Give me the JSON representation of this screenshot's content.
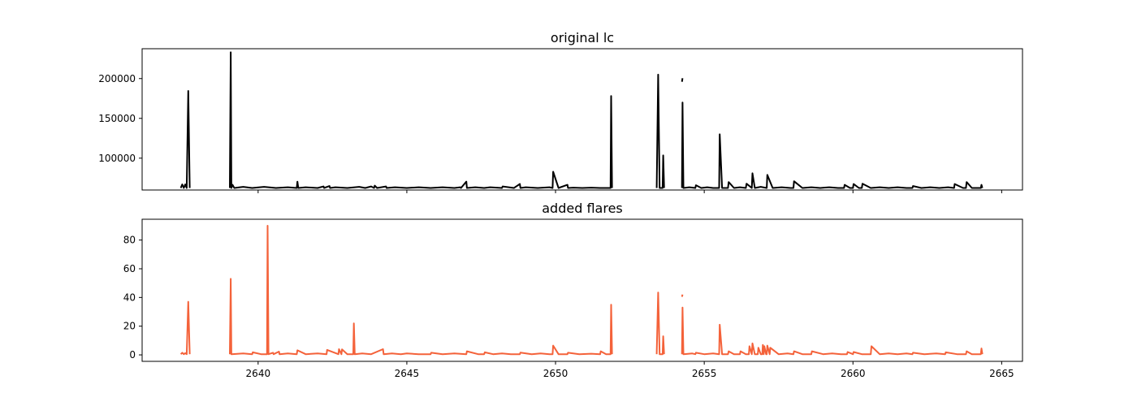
{
  "chart_data": [
    {
      "type": "line",
      "title": "original lc",
      "xlabel": "",
      "ylabel": "",
      "xlim": [
        2636.1,
        2665.7
      ],
      "ylim": [
        60000,
        237500
      ],
      "yticks": [
        100000,
        150000,
        200000
      ],
      "ytick_labels": [
        "100000",
        "150000",
        "200000"
      ],
      "xticks": [
        2640,
        2645,
        2650,
        2655,
        2660,
        2665
      ],
      "xtick_labels": [],
      "grid": false,
      "series": [
        {
          "color": "#000000",
          "segments": [
            {
              "x": [
                2637.4,
                2637.45,
                2637.5,
                2637.55,
                2637.6,
                2637.65,
                2637.7
              ],
              "y": [
                62500,
                67000,
                62500,
                67000,
                62500,
                184500,
                62500
              ]
            },
            {
              "x": [
                2639.05,
                2639.08,
                2639.1,
                2639.14,
                2639.2,
                2639.5,
                2639.8,
                2640.2,
                2640.6,
                2641.0,
                2641.3,
                2641.32,
                2641.35,
                2641.6,
                2642.0,
                2642.2,
                2642.22,
                2642.4,
                2642.42,
                2642.6,
                2643.0,
                2643.4,
                2643.6,
                2643.8,
                2643.9,
                2643.92,
                2644.0,
                2644.3,
                2644.32,
                2644.6,
                2645.0,
                2645.4,
                2645.8,
                2646.2,
                2646.6,
                2646.8,
                2646.82,
                2647.0,
                2647.02,
                2647.3,
                2647.6,
                2647.8,
                2648.2,
                2648.22,
                2648.6,
                2648.8,
                2648.82,
                2649.0,
                2649.4,
                2649.8,
                2649.9,
                2649.92,
                2650.1,
                2650.4,
                2650.42,
                2650.6,
                2650.9,
                2651.2,
                2651.5,
                2651.7,
                2651.85,
                2651.87,
                2651.9
              ],
              "y": [
                62500,
                233000,
                62500,
                66500,
                62500,
                64000,
                62500,
                64000,
                62500,
                63500,
                62500,
                70500,
                62500,
                63500,
                62500,
                64500,
                62500,
                65000,
                62500,
                63500,
                62500,
                64000,
                62500,
                64500,
                62500,
                65500,
                62500,
                64500,
                62500,
                63500,
                62500,
                63500,
                62500,
                63500,
                62500,
                63500,
                62500,
                70500,
                62500,
                63500,
                62500,
                63500,
                62500,
                64500,
                62500,
                67500,
                62500,
                63500,
                62500,
                63500,
                62500,
                83000,
                62500,
                66500,
                62500,
                63000,
                62500,
                63000,
                62500,
                62500,
                62500,
                178000,
                62500
              ]
            },
            {
              "x": [
                2653.4,
                2653.45,
                2653.5,
                2653.55,
                2653.6,
                2653.62,
                2653.65
              ],
              "y": [
                62500,
                205000,
                62500,
                62500,
                62500,
                103500,
                62500
              ]
            },
            {
              "x": [
                2654.25,
                2654.27
              ],
              "y": [
                196000,
                200500
              ]
            },
            {
              "x": [
                2654.25,
                2654.27,
                2654.3,
                2654.5,
                2654.7,
                2654.72,
                2654.9,
                2655.1,
                2655.3,
                2655.5,
                2655.52,
                2655.6,
                2655.8,
                2655.82,
                2656.0,
                2656.2,
                2656.4,
                2656.42,
                2656.6,
                2656.62,
                2656.7,
                2656.9,
                2657.1,
                2657.12,
                2657.3,
                2657.6,
                2657.9,
                2658.0,
                2658.02,
                2658.3,
                2658.6,
                2658.9,
                2659.2,
                2659.5,
                2659.7,
                2659.72,
                2659.9,
                2660.0,
                2660.02,
                2660.2,
                2660.3,
                2660.32,
                2660.6,
                2660.9,
                2661.2,
                2661.5,
                2661.8,
                2662.0,
                2662.02,
                2662.3,
                2662.6,
                2662.9,
                2663.2,
                2663.4,
                2663.42,
                2663.7,
                2663.8,
                2663.82,
                2664.0,
                2664.3,
                2664.32,
                2664.35
              ],
              "y": [
                62500,
                170000,
                62500,
                63500,
                62500,
                66000,
                62500,
                63500,
                62500,
                62500,
                130000,
                62500,
                62500,
                70000,
                62500,
                63500,
                62500,
                68000,
                62500,
                81000,
                62500,
                64000,
                62500,
                79000,
                62500,
                63500,
                62500,
                62500,
                71000,
                62500,
                63500,
                62500,
                63500,
                62500,
                62500,
                66500,
                62500,
                62500,
                67500,
                62500,
                62500,
                68000,
                62500,
                63500,
                62500,
                63500,
                62500,
                62500,
                65000,
                62500,
                63500,
                62500,
                63500,
                62500,
                67500,
                62500,
                62500,
                70000,
                62500,
                62500,
                66500,
                62500
              ]
            }
          ]
        }
      ]
    },
    {
      "type": "line",
      "title": "added flares",
      "xlabel": "",
      "ylabel": "",
      "xlim": [
        2636.1,
        2665.7
      ],
      "ylim": [
        -4.5,
        94.5
      ],
      "yticks": [
        0,
        20,
        40,
        60,
        80
      ],
      "ytick_labels": [
        "0",
        "20",
        "40",
        "60",
        "80"
      ],
      "xticks": [
        2640,
        2645,
        2650,
        2655,
        2660,
        2665
      ],
      "xtick_labels": [
        "2640",
        "2645",
        "2650",
        "2655",
        "2660",
        "2665"
      ],
      "grid": false,
      "series": [
        {
          "color": "#f4623a",
          "segments": [
            {
              "x": [
                2637.4,
                2637.45,
                2637.5,
                2637.55,
                2637.6,
                2637.65,
                2637.7
              ],
              "y": [
                0.5,
                1.5,
                0.5,
                1.2,
                0.5,
                37,
                0.5
              ]
            },
            {
              "x": [
                2639.05,
                2639.08,
                2639.1,
                2639.5,
                2639.8,
                2639.82,
                2640.1,
                2640.3,
                2640.32,
                2640.35,
                2640.5,
                2640.52,
                2640.7,
                2640.72,
                2641.0,
                2641.3,
                2641.32,
                2641.6,
                2642.0,
                2642.3,
                2642.32,
                2642.7,
                2642.72,
                2642.8,
                2642.82,
                2643.0,
                2643.2,
                2643.22,
                2643.25,
                2643.5,
                2643.8,
                2644.2,
                2644.22,
                2644.5,
                2644.8,
                2645.0,
                2645.4,
                2645.8,
                2645.82,
                2646.2,
                2646.6,
                2647.0,
                2647.02,
                2647.4,
                2647.6,
                2647.62,
                2647.9,
                2648.2,
                2648.5,
                2648.8,
                2648.82,
                2649.2,
                2649.5,
                2649.8,
                2649.9,
                2649.92,
                2650.1,
                2650.4,
                2650.42,
                2650.8,
                2651.2,
                2651.5,
                2651.52,
                2651.7,
                2651.85,
                2651.87,
                2651.9
              ],
              "y": [
                0.5,
                53,
                0.5,
                1,
                0.5,
                1.8,
                0.5,
                0.5,
                90,
                0.5,
                1.5,
                0.5,
                2.3,
                0.5,
                1,
                0.5,
                3.2,
                0.5,
                1,
                0.5,
                3.5,
                0.5,
                4,
                0.5,
                3.8,
                0.5,
                0.5,
                22,
                0.5,
                1,
                0.5,
                4,
                0.5,
                1,
                0.5,
                1,
                0.5,
                0.5,
                1.5,
                0.5,
                1,
                0.5,
                2.5,
                0.5,
                0.5,
                1.8,
                0.5,
                1,
                0.5,
                0.5,
                1.6,
                0.5,
                1,
                0.5,
                0.5,
                6.5,
                0.5,
                0.5,
                1.5,
                0.5,
                0.8,
                0.5,
                2.5,
                0.5,
                0.5,
                35,
                0.5
              ]
            },
            {
              "x": [
                2653.4,
                2653.45,
                2653.5,
                2653.55,
                2653.6,
                2653.62,
                2653.65
              ],
              "y": [
                0.5,
                43.5,
                0.5,
                0.5,
                0.5,
                13,
                0.5
              ]
            },
            {
              "x": [
                2654.25,
                2654.27
              ],
              "y": [
                40.5,
                42
              ]
            },
            {
              "x": [
                2654.25,
                2654.27,
                2654.3,
                2654.6,
                2654.7,
                2654.72,
                2655.0,
                2655.3,
                2655.5,
                2655.52,
                2655.6,
                2655.8,
                2655.82,
                2656.0,
                2656.2,
                2656.22,
                2656.4,
                2656.5,
                2656.52,
                2656.6,
                2656.62,
                2656.7,
                2656.8,
                2656.82,
                2656.9,
                2656.95,
                2656.97,
                2657.0,
                2657.02,
                2657.08,
                2657.1,
                2657.12,
                2657.2,
                2657.22,
                2657.5,
                2657.8,
                2658.0,
                2658.02,
                2658.3,
                2658.6,
                2658.62,
                2659.0,
                2659.3,
                2659.6,
                2659.8,
                2659.82,
                2660.0,
                2660.02,
                2660.3,
                2660.6,
                2660.62,
                2660.9,
                2661.2,
                2661.5,
                2661.8,
                2662.0,
                2662.02,
                2662.4,
                2662.8,
                2663.1,
                2663.12,
                2663.5,
                2663.8,
                2663.82,
                2664.0,
                2664.3,
                2664.32,
                2664.35
              ],
              "y": [
                0.5,
                33,
                0.5,
                1,
                0.5,
                1.5,
                0.5,
                1,
                0.5,
                21,
                0.5,
                0.5,
                2.5,
                0.5,
                0.5,
                2.5,
                0.5,
                0.5,
                6,
                0.5,
                8,
                0.5,
                0.5,
                5,
                0.5,
                0.5,
                7,
                0.5,
                6,
                0.5,
                0.5,
                6.5,
                0.5,
                5,
                0.5,
                1,
                0.5,
                2.5,
                0.5,
                0.5,
                2.5,
                0.5,
                1,
                0.5,
                0.5,
                2,
                0.5,
                2,
                0.5,
                0.5,
                6,
                0.5,
                1,
                0.5,
                1,
                0.5,
                1.5,
                0.5,
                1,
                0.5,
                1.8,
                0.5,
                0.5,
                2.5,
                0.5,
                0.5,
                4.5,
                0.5
              ]
            }
          ]
        }
      ]
    }
  ]
}
